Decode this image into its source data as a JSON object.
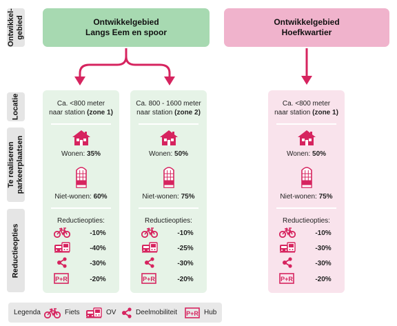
{
  "row_labels": {
    "ontwikkelgebied": "Ontwikkel-\ngebied",
    "locatie": "Locatie",
    "parkeerplaatsen": "Te realiseren\nparkeerplaatsen",
    "reductieopties": "Reductieopties"
  },
  "areas": {
    "green": {
      "line1": "Ontwikkelgebied",
      "line2": "Langs Eem en spoor"
    },
    "pink": {
      "line1": "Ontwikkelgebied",
      "line2": "Hoefkwartier"
    }
  },
  "columns": [
    {
      "loc_line1": "Ca. <800 meter",
      "loc_line2_pre": "naar station ",
      "loc_line2_bold": "(zone 1)",
      "wonen_label": "Wonen: ",
      "wonen_value": "35%",
      "niet_label": "Niet-wonen: ",
      "niet_value": "60%",
      "reductie_title": "Reductieopties:",
      "reductions": [
        "-10%",
        "-40%",
        "-30%",
        "-20%"
      ]
    },
    {
      "loc_line1": "Ca. 800 - 1600 meter",
      "loc_line2_pre": "naar station ",
      "loc_line2_bold": "(zone 2)",
      "wonen_label": "Wonen: ",
      "wonen_value": "50%",
      "niet_label": "Niet-wonen: ",
      "niet_value": "75%",
      "reductie_title": "Reductieopties:",
      "reductions": [
        "-10%",
        "-25%",
        "-30%",
        "-20%"
      ]
    },
    {
      "loc_line1": "Ca. <800 meter",
      "loc_line2_pre": "naar station ",
      "loc_line2_bold": "(zone 1)",
      "wonen_label": "Wonen: ",
      "wonen_value": "50%",
      "niet_label": "Niet-wonen: ",
      "niet_value": "75%",
      "reductie_title": "Reductieopties:",
      "reductions": [
        "-10%",
        "-30%",
        "-30%",
        "-20%"
      ]
    }
  ],
  "legend": {
    "title": "Legenda",
    "fiets": "Fiets",
    "ov": "OV",
    "deelmobiliteit": "Deelmobiliteit",
    "hub": "Hub",
    "pr_text": "P+R"
  },
  "colors": {
    "accent": "#d6245f",
    "green_area": "#a7d9b1",
    "pink_area": "#f0b3cc",
    "green_column": "#e6f3e7",
    "pink_column": "#f9e3ec",
    "row_label_bg": "#e5e5e5"
  },
  "icons": [
    "house-icon",
    "building-icon",
    "bicycle-icon",
    "public-transport-icon",
    "share-icon",
    "park-and-ride-icon"
  ]
}
